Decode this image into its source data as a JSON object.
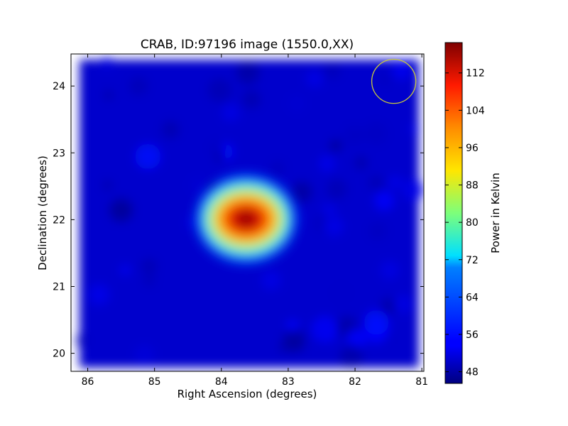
{
  "chart_data": {
    "type": "heatmap",
    "title": "CRAB, ID:97196 image (1550.0,XX)",
    "xlabel": "Right Ascension (degrees)",
    "ylabel": "Declination (degrees)",
    "xlim": [
      86.25,
      80.97
    ],
    "ylim": [
      19.73,
      24.48
    ],
    "x_ticks": [
      86,
      85,
      84,
      83,
      82,
      81
    ],
    "y_ticks": [
      20,
      21,
      22,
      23,
      24
    ],
    "colorbar": {
      "label": "Power in Kelvin",
      "range": [
        45.5,
        118.5
      ],
      "ticks": [
        48,
        56,
        64,
        72,
        80,
        88,
        96,
        104,
        112
      ],
      "colormap": "jet"
    },
    "source": {
      "ra": 83.63,
      "dec": 22.01,
      "peak_kelvin": 118
    },
    "background_kelvin": 51,
    "beam_circle": {
      "ra": 81.42,
      "dec": 24.07,
      "radius_deg": 0.33,
      "color": "#c8c83c"
    },
    "grid": false
  }
}
